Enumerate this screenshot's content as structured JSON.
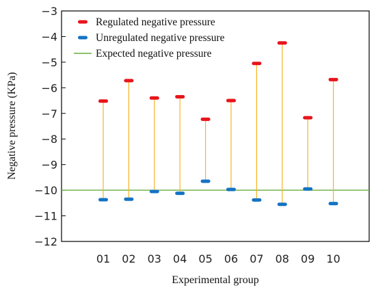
{
  "chart_data": {
    "type": "scatter",
    "xlabel": "Experimental group",
    "ylabel": "Negative pressure (KPa)",
    "ylim": [
      -12,
      -3
    ],
    "yticks": [
      -3,
      -4,
      -5,
      -6,
      -7,
      -8,
      -9,
      -10,
      -11,
      -12
    ],
    "categories": [
      "01",
      "02",
      "03",
      "04",
      "05",
      "06",
      "07",
      "08",
      "09",
      "10"
    ],
    "series": [
      {
        "name": "Regulated negative pressure",
        "color": "#e8141b",
        "values": [
          -6.52,
          -5.72,
          -6.4,
          -6.35,
          -7.23,
          -6.5,
          -5.05,
          -4.25,
          -7.17,
          -5.68
        ]
      },
      {
        "name": "Unregulated negative pressure",
        "color": "#1473c4",
        "values": [
          -10.37,
          -10.35,
          -10.05,
          -10.12,
          -9.65,
          -9.97,
          -10.38,
          -10.55,
          -9.95,
          -10.52
        ]
      }
    ],
    "reference_line": {
      "name": "Expected negative pressure",
      "value": -10,
      "color": "#6aab3a"
    },
    "connector_color": "#f5b324",
    "legend_position": "top-left",
    "grid": false
  }
}
